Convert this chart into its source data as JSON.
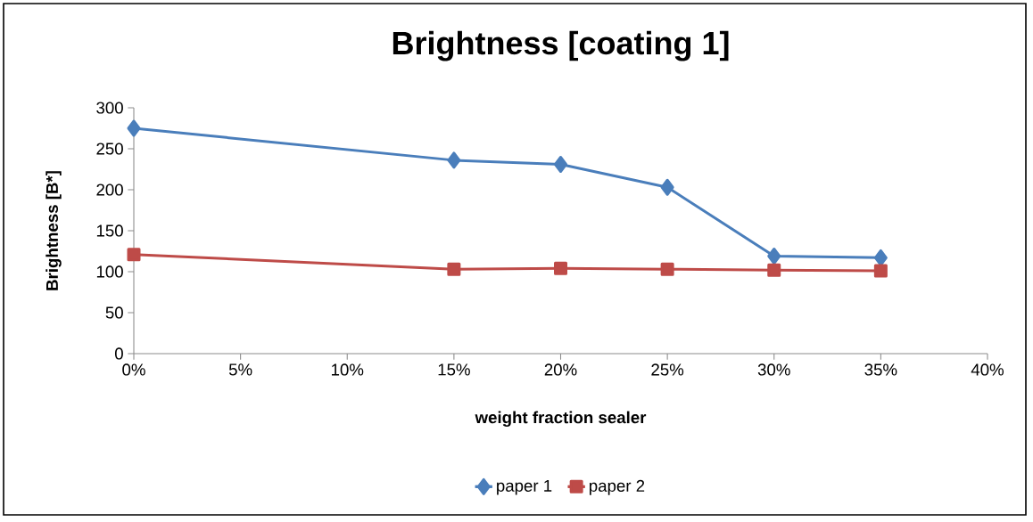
{
  "chart_data": {
    "type": "line",
    "title": "Brightness [coating 1]",
    "xlabel": "weight fraction sealer",
    "ylabel": "Brightness [B*]",
    "x": [
      0,
      15,
      20,
      25,
      30,
      35
    ],
    "series": [
      {
        "name": "paper 1",
        "color": "#4a7ebb",
        "marker": "diamond",
        "values": [
          275,
          236,
          231,
          203,
          119,
          117
        ]
      },
      {
        "name": "paper 2",
        "color": "#be4b48",
        "marker": "square",
        "values": [
          121,
          103,
          104,
          103,
          102,
          101
        ]
      }
    ],
    "xlim": [
      0,
      40
    ],
    "xticks": [
      {
        "value": 0,
        "label": "0%"
      },
      {
        "value": 5,
        "label": "5%"
      },
      {
        "value": 10,
        "label": "10%"
      },
      {
        "value": 15,
        "label": "15%"
      },
      {
        "value": 20,
        "label": "20%"
      },
      {
        "value": 25,
        "label": "25%"
      },
      {
        "value": 30,
        "label": "30%"
      },
      {
        "value": 35,
        "label": "35%"
      },
      {
        "value": 40,
        "label": "40%"
      }
    ],
    "ylim": [
      0,
      300
    ],
    "yticks": [
      0,
      50,
      100,
      150,
      200,
      250,
      300
    ],
    "grid": false,
    "legend": "bottom",
    "line_style": "solid"
  }
}
